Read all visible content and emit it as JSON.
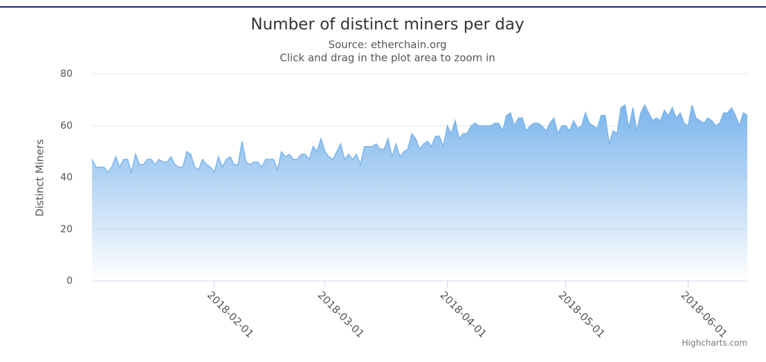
{
  "chart_data": {
    "type": "area",
    "title": "Number of distinct miners per day",
    "subtitle": "Source: etherchain.org",
    "subtitle2": "Click and drag in the plot area to zoom in",
    "y_label": "Distinct Miners",
    "credits": "Highcharts.com",
    "color": "#7cb5ec",
    "grid": true,
    "ylim": [
      0,
      80
    ],
    "yticks": [
      0,
      20,
      40,
      60,
      80
    ],
    "xlim": [
      "2018-01-01",
      "2018-06-16"
    ],
    "xticks": [
      "2018-02-01",
      "2018-03-01",
      "2018-04-01",
      "2018-05-01",
      "2018-06-01"
    ],
    "x": [
      "2018-01-01",
      "2018-01-02",
      "2018-01-03",
      "2018-01-04",
      "2018-01-05",
      "2018-01-06",
      "2018-01-07",
      "2018-01-08",
      "2018-01-09",
      "2018-01-10",
      "2018-01-11",
      "2018-01-12",
      "2018-01-13",
      "2018-01-14",
      "2018-01-15",
      "2018-01-16",
      "2018-01-17",
      "2018-01-18",
      "2018-01-19",
      "2018-01-20",
      "2018-01-21",
      "2018-01-22",
      "2018-01-23",
      "2018-01-24",
      "2018-01-25",
      "2018-01-26",
      "2018-01-27",
      "2018-01-28",
      "2018-01-29",
      "2018-01-30",
      "2018-01-31",
      "2018-02-01",
      "2018-02-02",
      "2018-02-03",
      "2018-02-04",
      "2018-02-05",
      "2018-02-06",
      "2018-02-07",
      "2018-02-08",
      "2018-02-09",
      "2018-02-10",
      "2018-02-11",
      "2018-02-12",
      "2018-02-13",
      "2018-02-14",
      "2018-02-15",
      "2018-02-16",
      "2018-02-17",
      "2018-02-18",
      "2018-02-19",
      "2018-02-20",
      "2018-02-21",
      "2018-02-22",
      "2018-02-23",
      "2018-02-24",
      "2018-02-25",
      "2018-02-26",
      "2018-02-27",
      "2018-02-28",
      "2018-03-01",
      "2018-03-02",
      "2018-03-03",
      "2018-03-04",
      "2018-03-05",
      "2018-03-06",
      "2018-03-07",
      "2018-03-08",
      "2018-03-09",
      "2018-03-10",
      "2018-03-11",
      "2018-03-12",
      "2018-03-13",
      "2018-03-14",
      "2018-03-15",
      "2018-03-16",
      "2018-03-17",
      "2018-03-18",
      "2018-03-19",
      "2018-03-20",
      "2018-03-21",
      "2018-03-22",
      "2018-03-23",
      "2018-03-24",
      "2018-03-25",
      "2018-03-26",
      "2018-03-27",
      "2018-03-28",
      "2018-03-29",
      "2018-03-30",
      "2018-03-31",
      "2018-04-01",
      "2018-04-02",
      "2018-04-03",
      "2018-04-04",
      "2018-04-05",
      "2018-04-06",
      "2018-04-07",
      "2018-04-08",
      "2018-04-09",
      "2018-04-10",
      "2018-04-11",
      "2018-04-12",
      "2018-04-13",
      "2018-04-14",
      "2018-04-15",
      "2018-04-16",
      "2018-04-17",
      "2018-04-18",
      "2018-04-19",
      "2018-04-20",
      "2018-04-21",
      "2018-04-22",
      "2018-04-23",
      "2018-04-24",
      "2018-04-25",
      "2018-04-26",
      "2018-04-27",
      "2018-04-28",
      "2018-04-29",
      "2018-04-30",
      "2018-05-01",
      "2018-05-02",
      "2018-05-03",
      "2018-05-04",
      "2018-05-05",
      "2018-05-06",
      "2018-05-07",
      "2018-05-08",
      "2018-05-09",
      "2018-05-10",
      "2018-05-11",
      "2018-05-12",
      "2018-05-13",
      "2018-05-14",
      "2018-05-15",
      "2018-05-16",
      "2018-05-17",
      "2018-05-18",
      "2018-05-19",
      "2018-05-20",
      "2018-05-21",
      "2018-05-22",
      "2018-05-23",
      "2018-05-24",
      "2018-05-25",
      "2018-05-26",
      "2018-05-27",
      "2018-05-28",
      "2018-05-29",
      "2018-05-30",
      "2018-05-31",
      "2018-06-01",
      "2018-06-02",
      "2018-06-03",
      "2018-06-04",
      "2018-06-05",
      "2018-06-06",
      "2018-06-07",
      "2018-06-08",
      "2018-06-09",
      "2018-06-10",
      "2018-06-11",
      "2018-06-12",
      "2018-06-13",
      "2018-06-14",
      "2018-06-15",
      "2018-06-16"
    ],
    "values": [
      47,
      44,
      44,
      44,
      42,
      44,
      48,
      44,
      47,
      47,
      42,
      49,
      45,
      45,
      47,
      47,
      45,
      47,
      46,
      46,
      48,
      45,
      44,
      44,
      50,
      49,
      44,
      43,
      47,
      45,
      44,
      42,
      48,
      44,
      47,
      48,
      45,
      45,
      54,
      46,
      45,
      46,
      46,
      44,
      47,
      47,
      47,
      43,
      50,
      48,
      49,
      47,
      47,
      49,
      49,
      47,
      52,
      50,
      55,
      50,
      48,
      47,
      50,
      53,
      47,
      49,
      47,
      49,
      45,
      52,
      52,
      52,
      53,
      51,
      51,
      55,
      48,
      53,
      48,
      50,
      51,
      57,
      55,
      51,
      53,
      54,
      52,
      56,
      56,
      52,
      60,
      57,
      62,
      55,
      57,
      57,
      60,
      61,
      60,
      60,
      60,
      60,
      61,
      61,
      58,
      64,
      65,
      60,
      63,
      63,
      58,
      60,
      61,
      61,
      60,
      58,
      61,
      63,
      57,
      60,
      60,
      58,
      62,
      59,
      60,
      65,
      61,
      60,
      59,
      64,
      64,
      53,
      58,
      57,
      67,
      68,
      59,
      67,
      58,
      65,
      68,
      65,
      62,
      63,
      62,
      66,
      64,
      67,
      63,
      65,
      61,
      60,
      68,
      63,
      62,
      61,
      63,
      62,
      60,
      61,
      65,
      65,
      67,
      64,
      60,
      65,
      64
    ]
  }
}
